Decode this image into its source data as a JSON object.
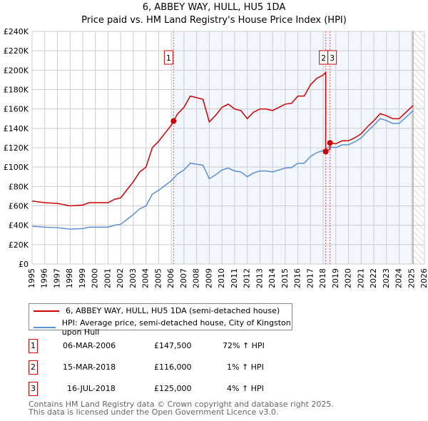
{
  "chart_data": {
    "type": "line",
    "title": "6, ABBEY WAY, HULL, HU5 1DA",
    "subtitle": "Price paid vs. HM Land Registry's House Price Index (HPI)",
    "xlim": [
      1995,
      2026
    ],
    "ylim": [
      0,
      240000
    ],
    "y_ticks": [
      {
        "v": 0,
        "l": "£0"
      },
      {
        "v": 20000,
        "l": "£20K"
      },
      {
        "v": 40000,
        "l": "£40K"
      },
      {
        "v": 60000,
        "l": "£60K"
      },
      {
        "v": 80000,
        "l": "£80K"
      },
      {
        "v": 100000,
        "l": "£100K"
      },
      {
        "v": 120000,
        "l": "£120K"
      },
      {
        "v": 140000,
        "l": "£140K"
      },
      {
        "v": 160000,
        "l": "£160K"
      },
      {
        "v": 180000,
        "l": "£180K"
      },
      {
        "v": 200000,
        "l": "£200K"
      },
      {
        "v": 220000,
        "l": "£220K"
      },
      {
        "v": 240000,
        "l": "£240K"
      }
    ],
    "x_ticks": [
      "1995",
      "1996",
      "1997",
      "1998",
      "1999",
      "2000",
      "2001",
      "2002",
      "2003",
      "2004",
      "2005",
      "2006",
      "2007",
      "2008",
      "2009",
      "2010",
      "2011",
      "2012",
      "2013",
      "2014",
      "2015",
      "2016",
      "2017",
      "2018",
      "2019",
      "2020",
      "2021",
      "2022",
      "2023",
      "2024",
      "2025",
      "2026"
    ],
    "hpi_series": {
      "name": "HPI: Average price, semi-detached house, City of Kingston upon Hull",
      "color": "#5b8fd4",
      "x": [
        1995,
        1996,
        1997,
        1998,
        1999,
        1999.5,
        2000,
        2001,
        2001.5,
        2002,
        2002.5,
        2003,
        2003.5,
        2004,
        2004.5,
        2005,
        2005.5,
        2006,
        2006.5,
        2007,
        2007.5,
        2008,
        2008.5,
        2009,
        2009.5,
        2010,
        2010.5,
        2011,
        2011.5,
        2012,
        2012.5,
        2013,
        2013.5,
        2014,
        2014.5,
        2015,
        2015.5,
        2016,
        2016.5,
        2017,
        2017.5,
        2018,
        2018.5,
        2019,
        2019.5,
        2020,
        2020.5,
        2021,
        2021.5,
        2022,
        2022.5,
        2023,
        2023.5,
        2024,
        2024.5,
        2025,
        2025.1
      ],
      "y": [
        39000,
        38000,
        37500,
        36000,
        36500,
        38000,
        38000,
        38000,
        40000,
        41000,
        46000,
        51000,
        57000,
        60000,
        72000,
        76000,
        81000,
        86000,
        93000,
        97000,
        104000,
        103000,
        102000,
        88000,
        92000,
        97000,
        99000,
        96000,
        95000,
        90000,
        94000,
        96000,
        96000,
        95000,
        97000,
        99000,
        99500,
        104000,
        104000,
        111000,
        115000,
        117000,
        121000,
        120000,
        123000,
        123000,
        126000,
        130000,
        137000,
        143000,
        150000,
        148000,
        145000,
        145000,
        151000,
        157000,
        158000
      ]
    },
    "property_series": {
      "name": "6, ABBEY WAY, HULL, HU5 1DA (semi-detached house)",
      "color": "#cc0000"
    },
    "sales": [
      {
        "id": "1",
        "x": 2006.18,
        "date": "06-MAR-2006",
        "price_value": 147500,
        "price": "£147,500",
        "hpi": "72% ↑ HPI"
      },
      {
        "id": "2",
        "x": 2018.2,
        "date": "15-MAR-2018",
        "price_value": 116000,
        "price": "£116,000",
        "hpi": "1% ↑ HPI"
      },
      {
        "id": "3",
        "x": 2018.54,
        "date": "16-JUL-2018",
        "price_value": 125000,
        "price": "£125,000",
        "hpi": "4% ↑ HPI"
      }
    ],
    "forecast_start": 2025.1
  },
  "footer": {
    "line1": "Contains HM Land Registry data © Crown copyright and database right 2025.",
    "line2": "This data is licensed under the Open Government Licence v3.0."
  }
}
